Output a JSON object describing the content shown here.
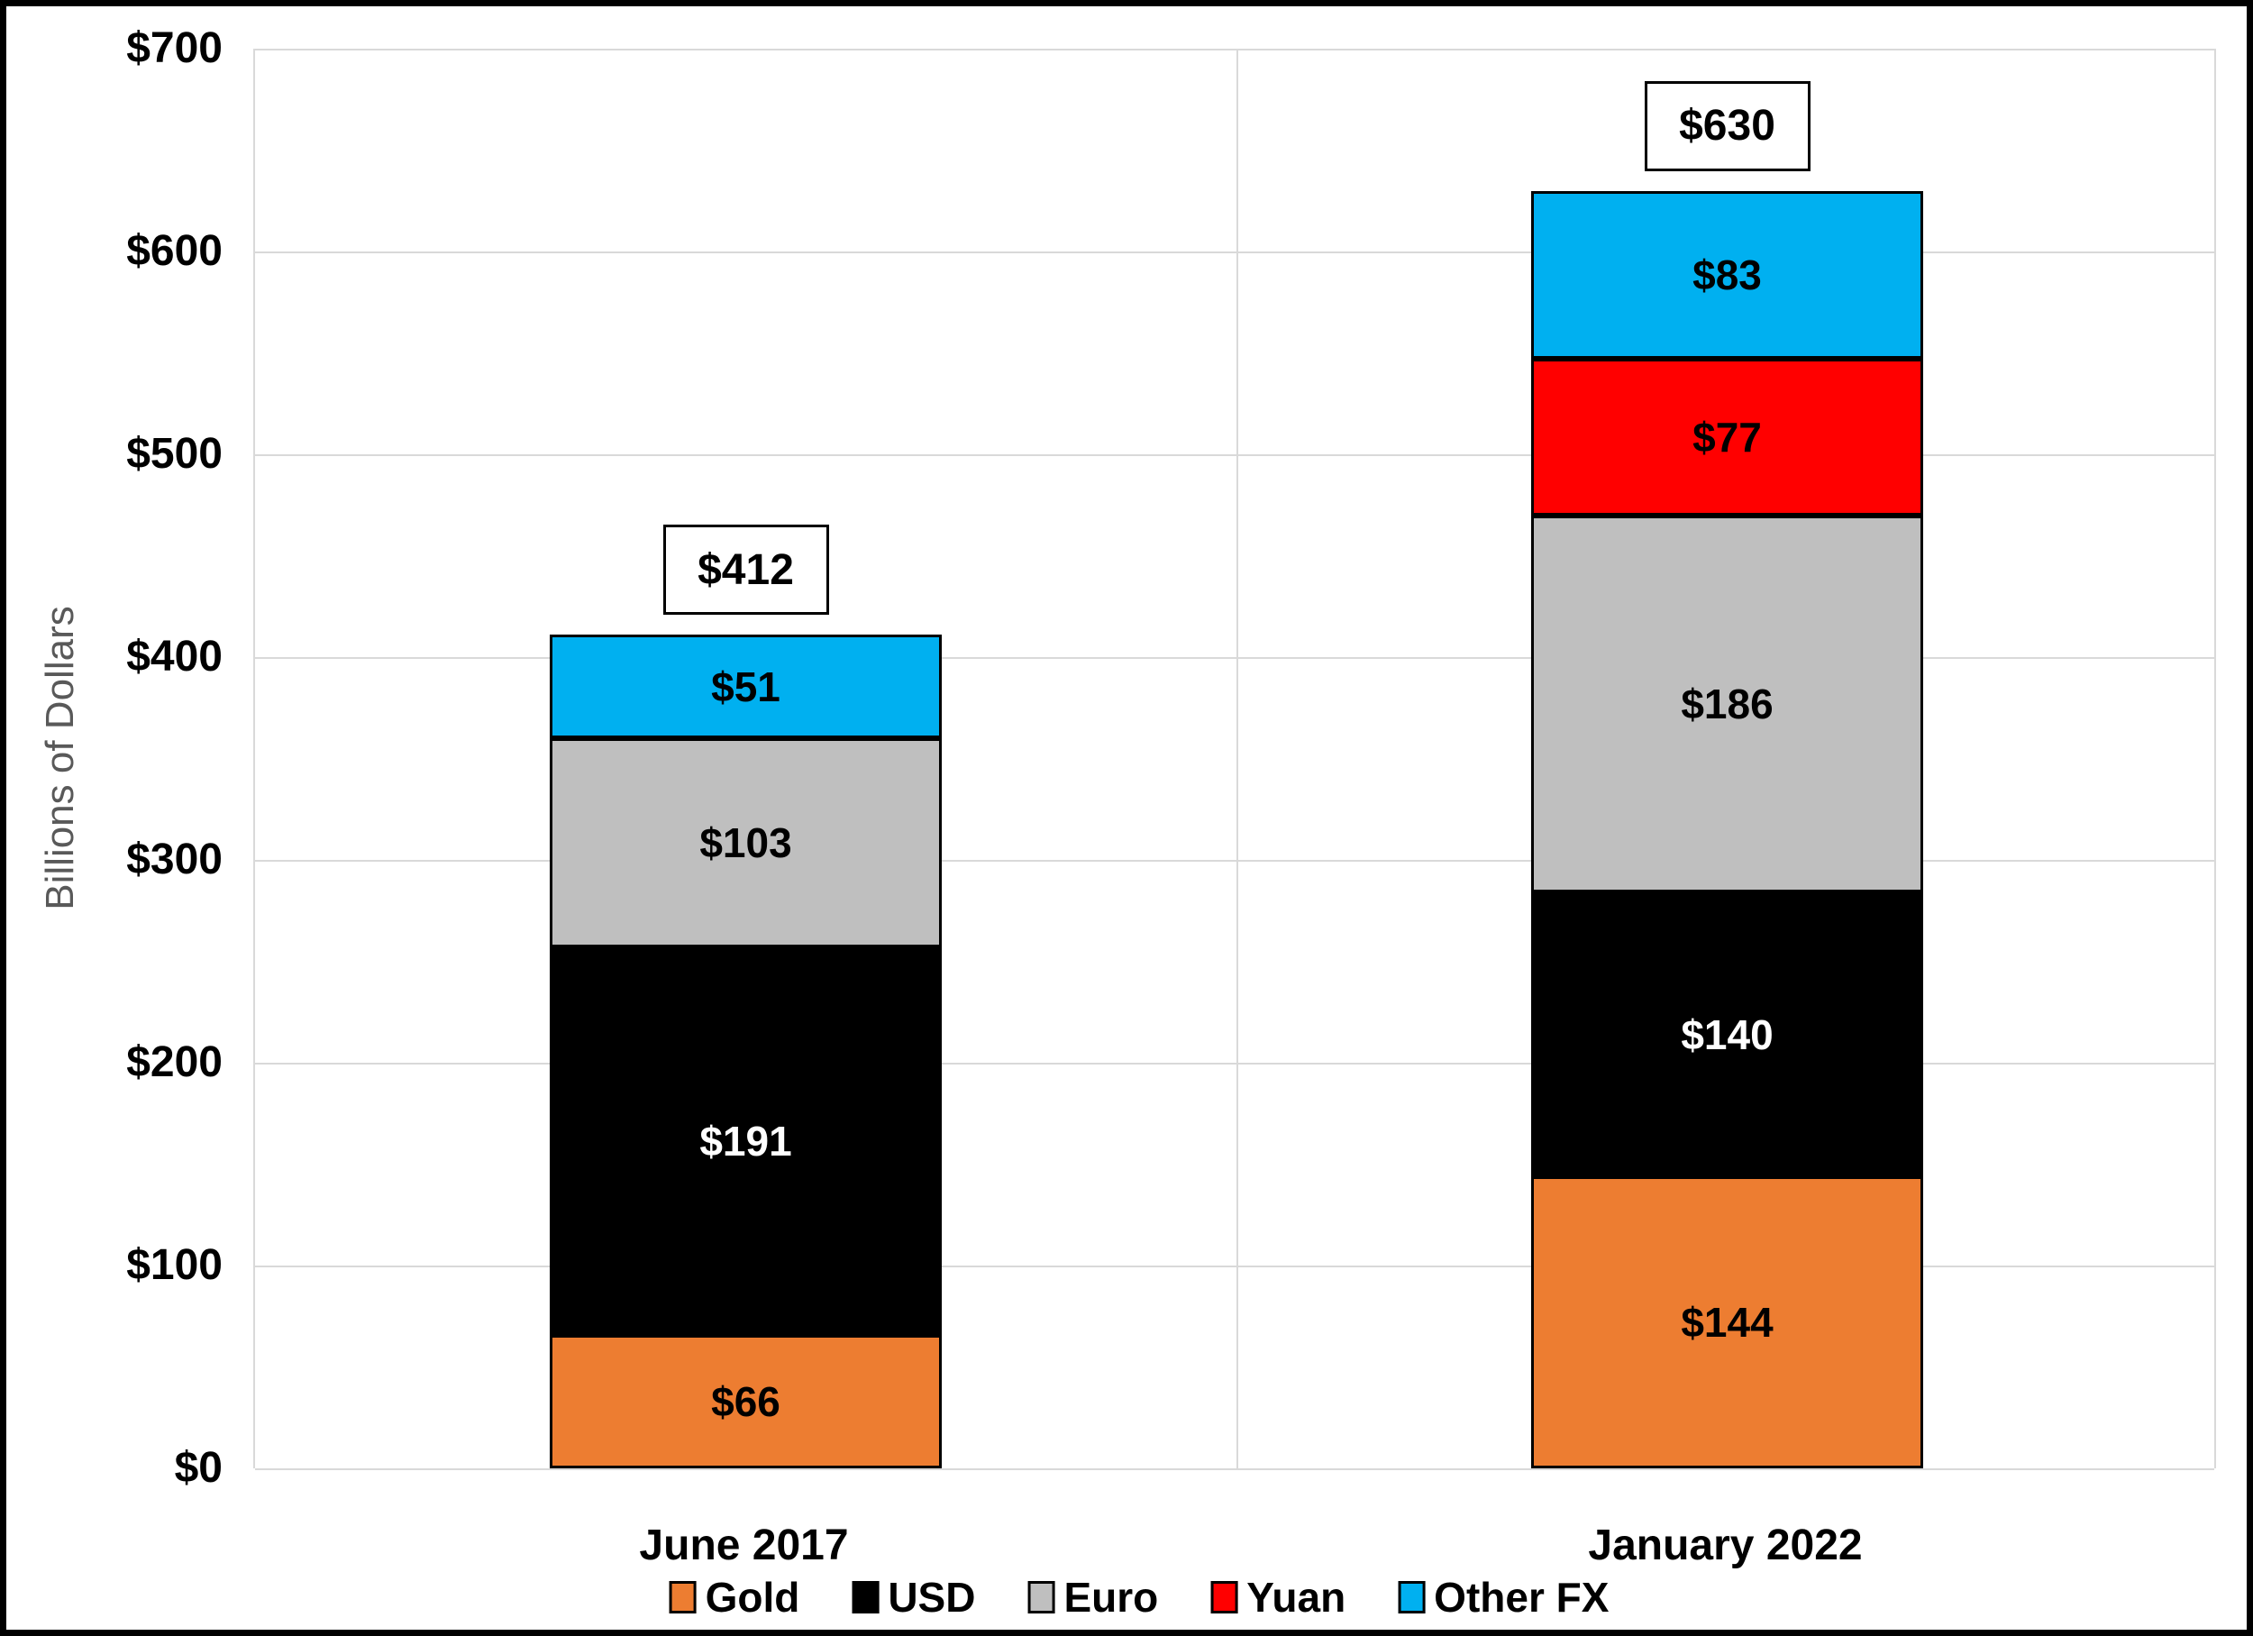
{
  "chart_data": {
    "type": "bar",
    "stacked": true,
    "ylabel": "Billions of Dollars",
    "ylim": [
      0,
      700
    ],
    "ytick_step": 100,
    "yticks": [
      {
        "value": 0,
        "label": "$0"
      },
      {
        "value": 100,
        "label": "$100"
      },
      {
        "value": 200,
        "label": "$200"
      },
      {
        "value": 300,
        "label": "$300"
      },
      {
        "value": 400,
        "label": "$400"
      },
      {
        "value": 500,
        "label": "$500"
      },
      {
        "value": 600,
        "label": "$600"
      },
      {
        "value": 700,
        "label": "$700"
      }
    ],
    "grid": true,
    "legend_position": "bottom",
    "categories": [
      "June 2017",
      "January 2022"
    ],
    "totals": [
      {
        "value": 412,
        "label": "$412"
      },
      {
        "value": 630,
        "label": "$630"
      }
    ],
    "series": [
      {
        "name": "Gold",
        "color": "#ED7D31",
        "label_color": "#000000",
        "values": [
          66,
          144
        ],
        "labels": [
          "$66",
          "$144"
        ]
      },
      {
        "name": "USD",
        "color": "#000000",
        "label_color": "#FFFFFF",
        "values": [
          191,
          140
        ],
        "labels": [
          "$191",
          "$140"
        ]
      },
      {
        "name": "Euro",
        "color": "#BFBFBF",
        "label_color": "#000000",
        "values": [
          103,
          186
        ],
        "labels": [
          "$103",
          "$186"
        ]
      },
      {
        "name": "Yuan",
        "color": "#FF0000",
        "label_color": "#000000",
        "values": [
          0,
          77
        ],
        "labels": [
          "",
          "$77"
        ]
      },
      {
        "name": "Other FX",
        "color": "#00B0F0",
        "label_color": "#000000",
        "values": [
          51,
          83
        ],
        "labels": [
          "$51",
          "$83"
        ]
      }
    ]
  },
  "colors": {
    "gridline": "#d9d9d9",
    "axis_text": "#000000",
    "ytitle_text": "#595959",
    "outer_border": "#000000",
    "background": "#ffffff"
  }
}
